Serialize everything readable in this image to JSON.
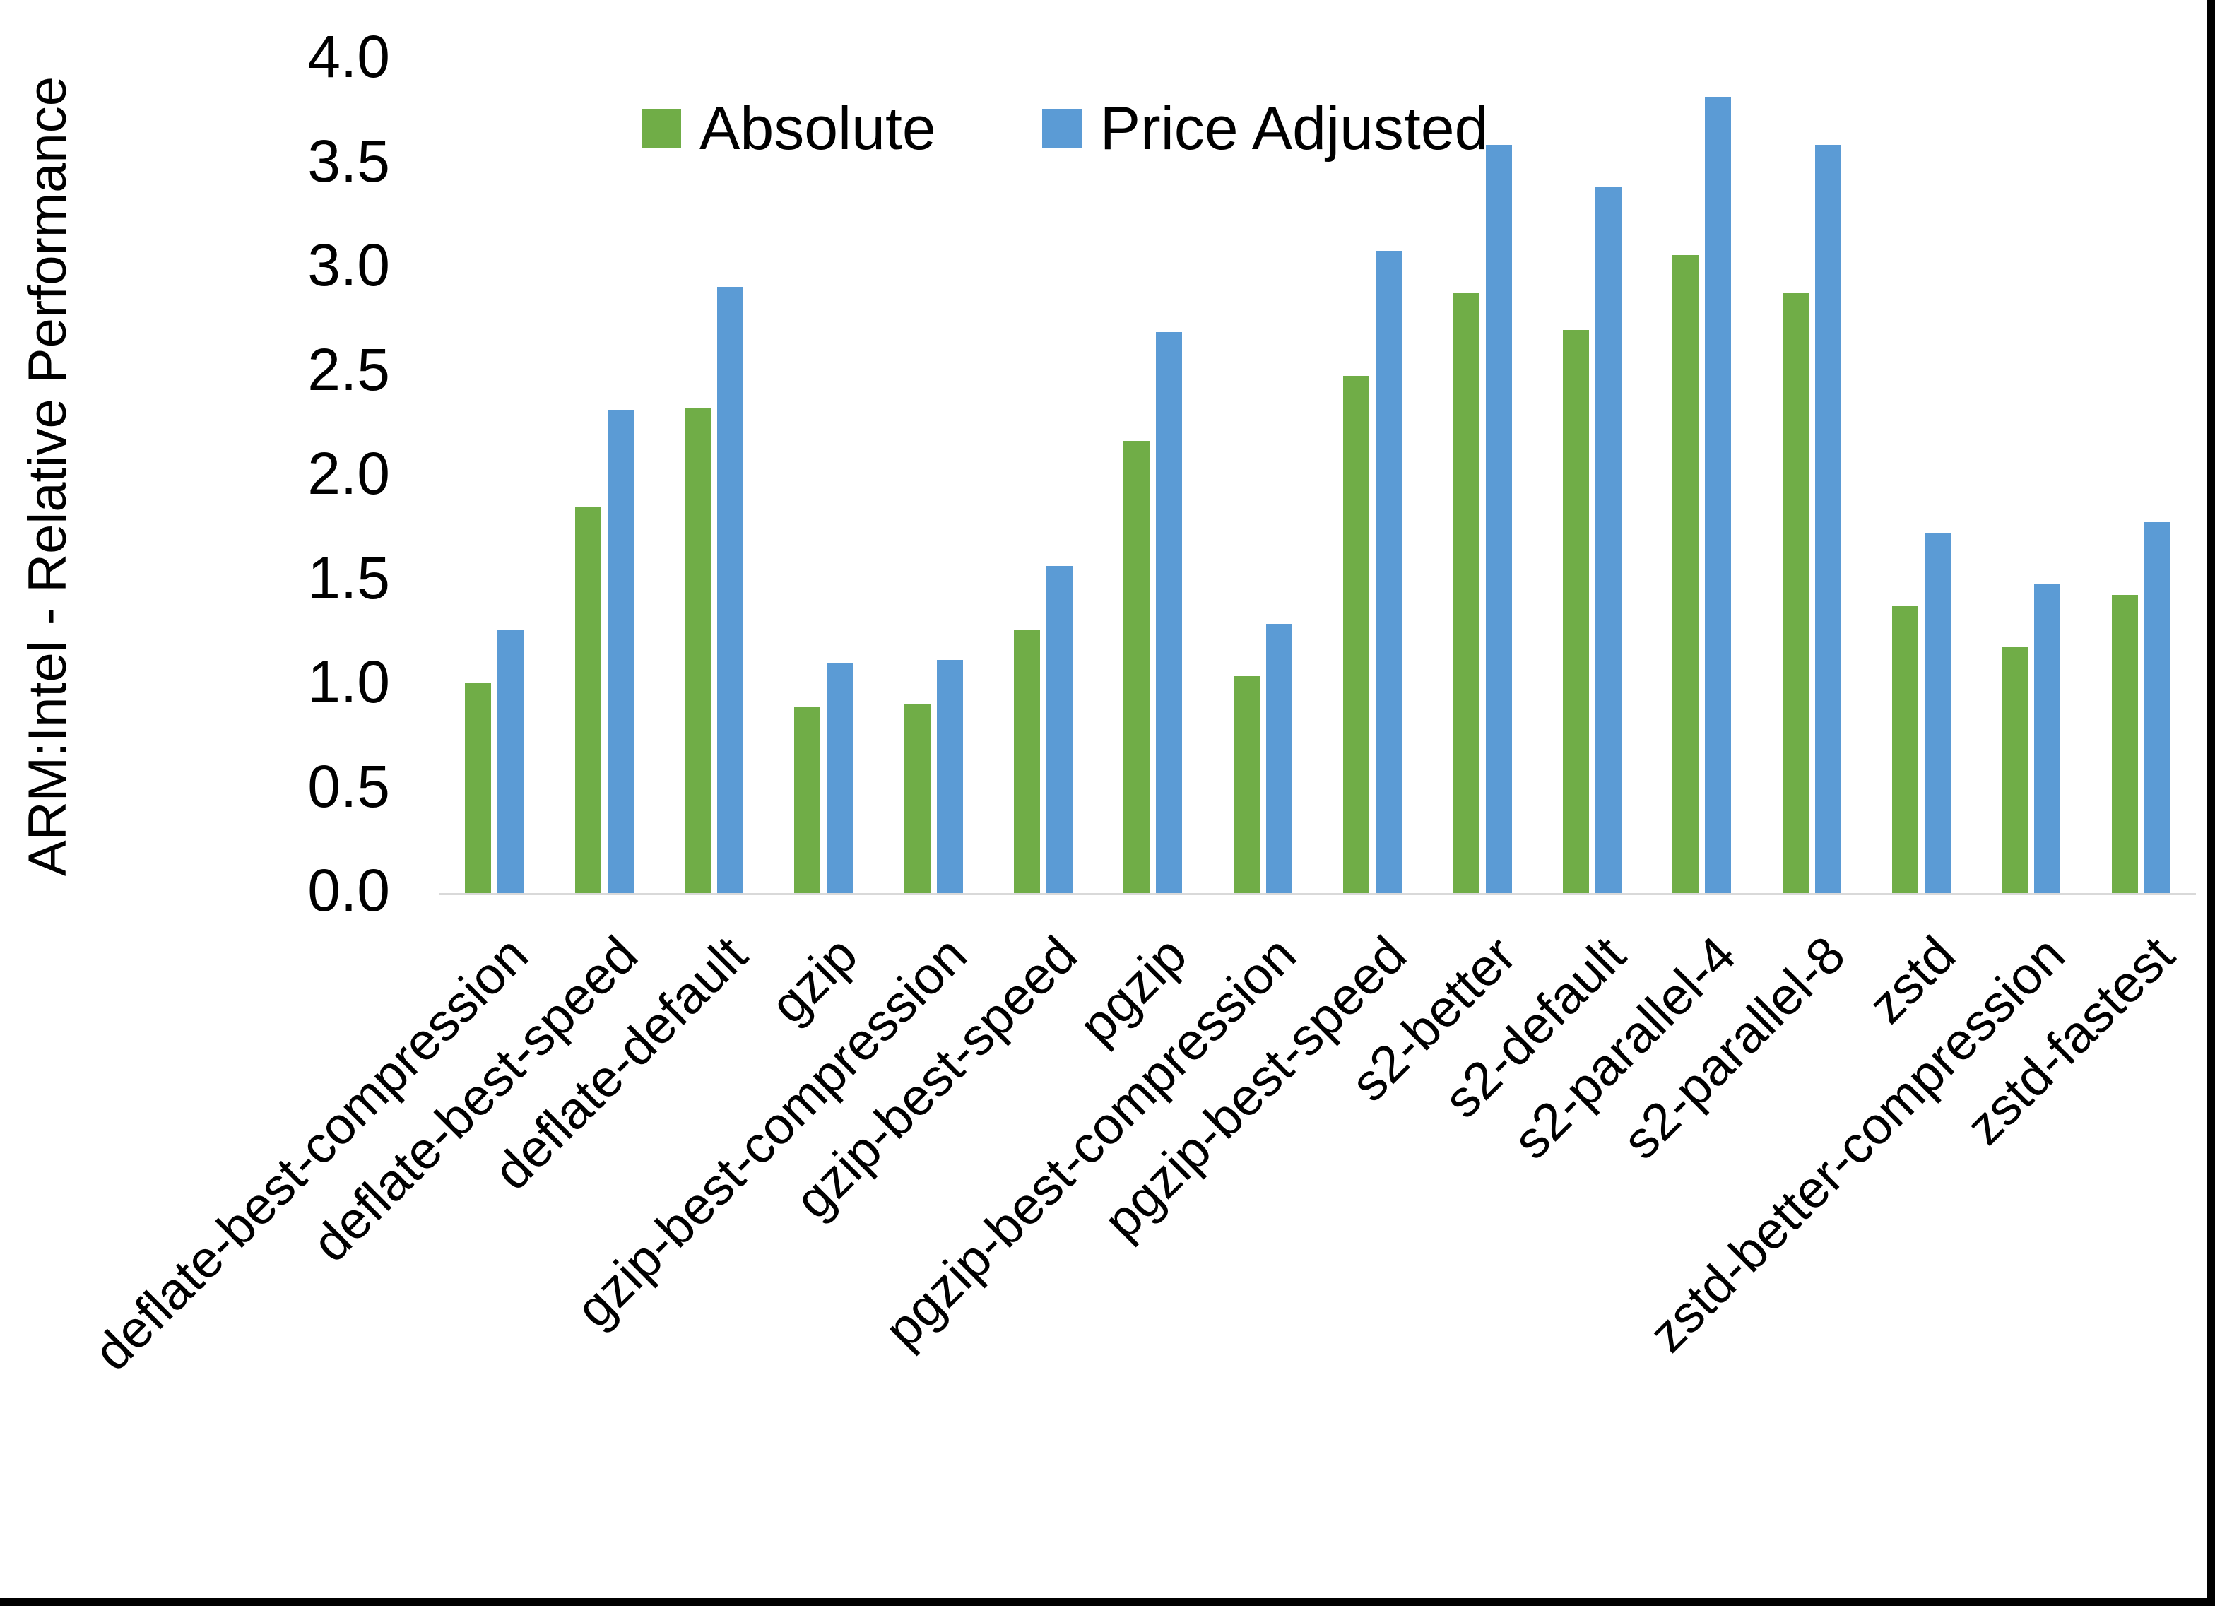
{
  "chart_data": {
    "type": "bar",
    "title": "",
    "xlabel": "",
    "ylabel": "ARM:Intel - Relative Performance",
    "ylim": [
      0.0,
      4.0
    ],
    "ytick_step": 0.5,
    "ytick_labels": [
      "4.0",
      "3.5",
      "3.0",
      "2.5",
      "2.0",
      "1.5",
      "1.0",
      "0.5",
      "0.0"
    ],
    "grid": false,
    "legend_position": "top-center",
    "axis_line_color": "#D9D9D9",
    "categories": [
      "deflate-best-compression",
      "deflate-best-speed",
      "deflate-default",
      "gzip",
      "gzip-best-compression",
      "gzip-best-speed",
      "pgzip",
      "pgzip-best-compression",
      "pgzip-best-speed",
      "s2-better",
      "s2-default",
      "s2-parallel-4",
      "s2-parallel-8",
      "zstd",
      "zstd-better-compression",
      "zstd-fastest"
    ],
    "series": [
      {
        "name": "Absolute",
        "color": "#70AD47",
        "values": [
          1.01,
          1.85,
          2.33,
          0.89,
          0.91,
          1.26,
          2.17,
          1.04,
          2.48,
          2.88,
          2.7,
          3.06,
          2.88,
          1.38,
          1.18,
          1.43
        ]
      },
      {
        "name": "Price Adjusted",
        "color": "#5B9BD5",
        "values": [
          1.26,
          2.32,
          2.91,
          1.1,
          1.12,
          1.57,
          2.69,
          1.29,
          3.08,
          3.59,
          3.39,
          3.82,
          3.59,
          1.73,
          1.48,
          1.78
        ]
      }
    ]
  }
}
